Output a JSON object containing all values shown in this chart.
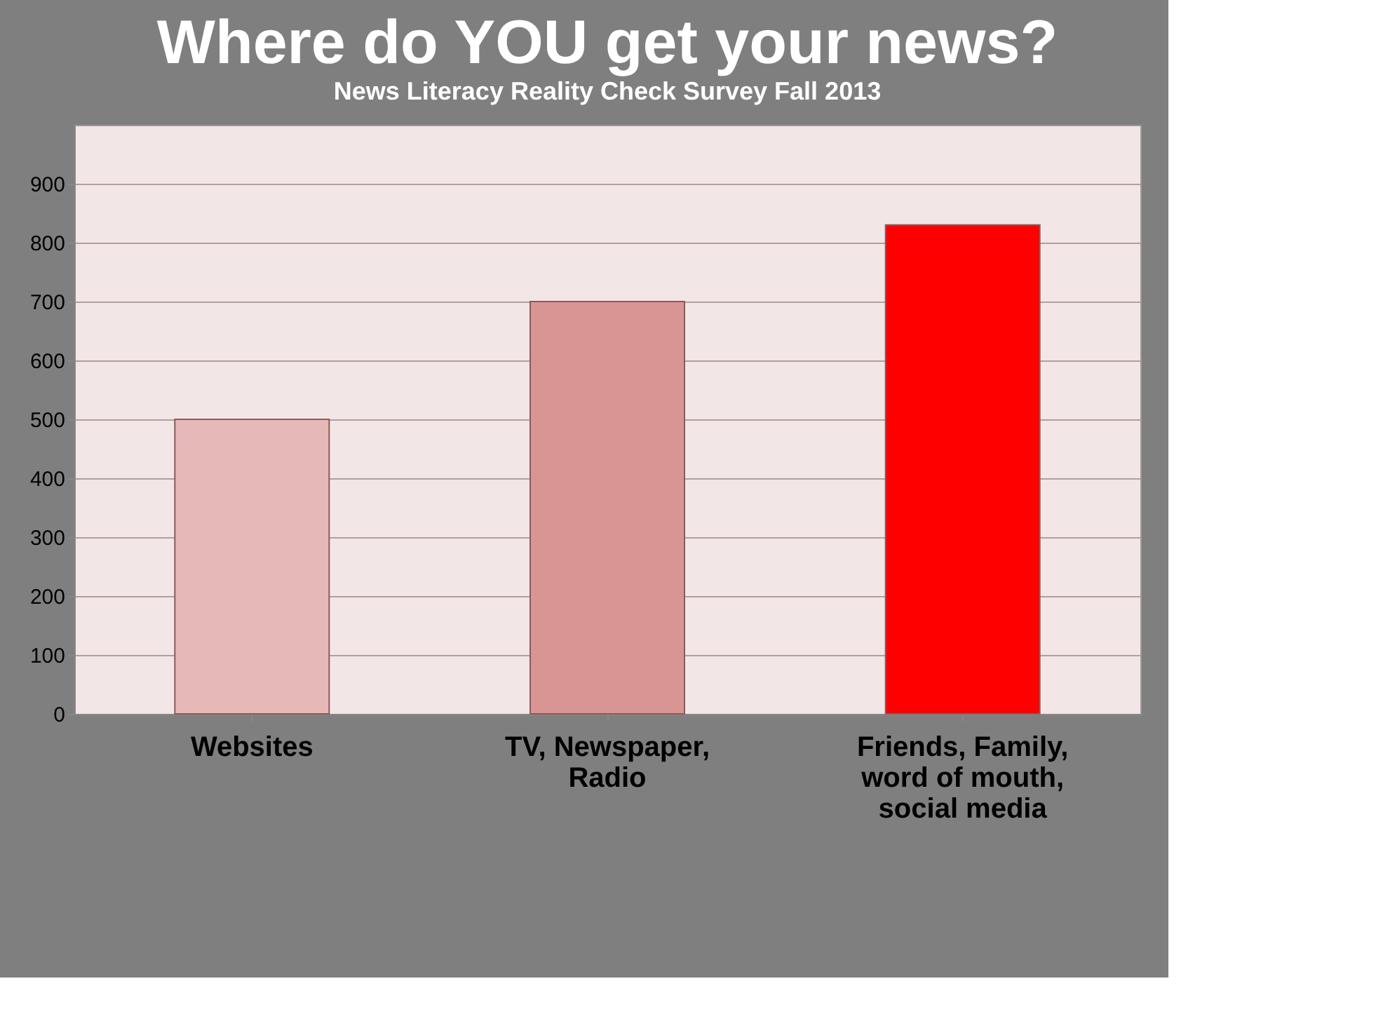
{
  "chart_data": {
    "type": "bar",
    "title": "Where do YOU get your news?",
    "subtitle": "News Literacy Reality Check Survey Fall 2013",
    "categories": [
      "Websites",
      "TV, Newspaper, Radio",
      "Friends, Family, word of mouth, social media"
    ],
    "values": [
      500,
      700,
      830
    ],
    "colors": [
      "#e6b8b7",
      "#d99594",
      "#ff0000"
    ],
    "ylim": [
      0,
      1000
    ],
    "yticks": [
      0,
      100,
      200,
      300,
      400,
      500,
      600,
      700,
      800,
      900
    ],
    "grid": "y"
  }
}
